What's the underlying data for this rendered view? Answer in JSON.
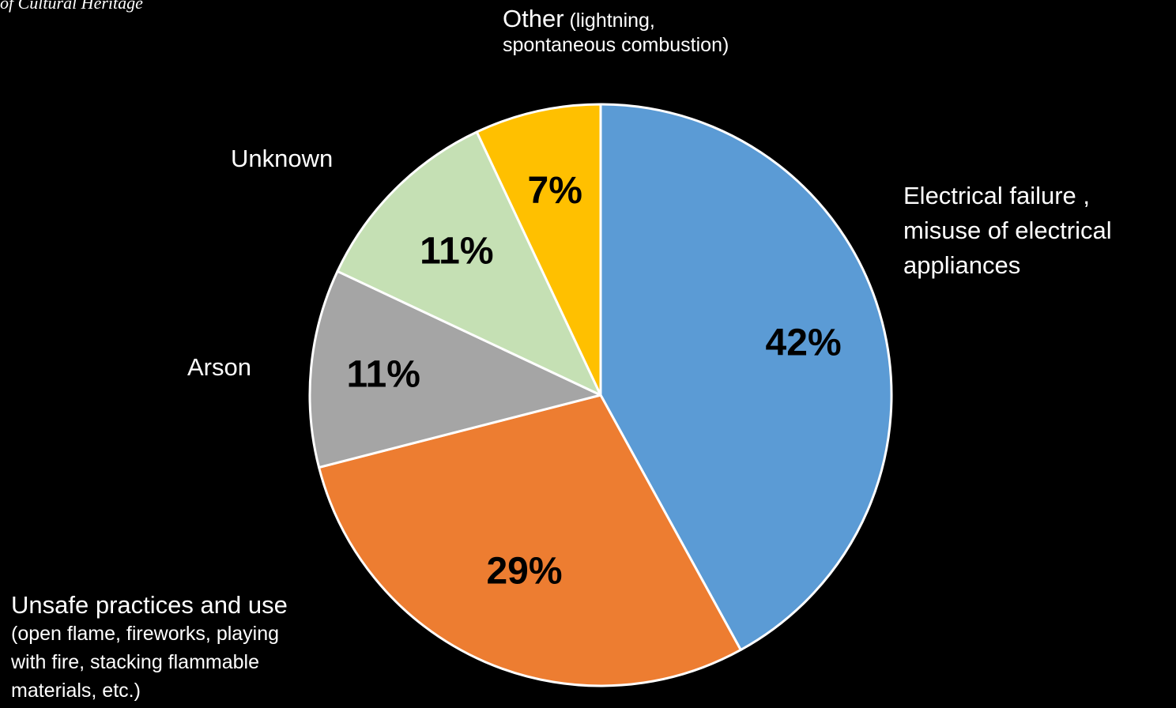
{
  "header_fragment": "of Cultural Heritage",
  "chart_data": {
    "type": "pie",
    "start_angle_deg": 0,
    "direction": "clockwise",
    "slice_border": "#ffffff",
    "background": "#000000",
    "slices": [
      {
        "label": "Electrical failure , misuse  of electrical appliances",
        "value": 42,
        "value_label": "42%",
        "color": "#5B9BD5"
      },
      {
        "label": "Unsafe practices and use (open flame, fireworks, playing with fire, stacking flammable materials, etc.)",
        "value": 29,
        "value_label": "29%",
        "color": "#ED7D31"
      },
      {
        "label": "Arson",
        "value": 11,
        "value_label": "11%",
        "color": "#A5A5A5"
      },
      {
        "label": "Unknown",
        "value": 11,
        "value_label": "11%",
        "color": "#C5E0B4"
      },
      {
        "label": "Other (lightning, spontaneous combustion)",
        "value": 7,
        "value_label": "7%",
        "color": "#FFC000"
      }
    ]
  },
  "labels": {
    "other_main": "Other",
    "other_sub_1": " (lightning,",
    "other_sub_2": "spontaneous combustion)",
    "unknown": "Unknown",
    "electrical_1": "Electrical failure ,",
    "electrical_2": "misuse  of electrical",
    "electrical_3": "appliances",
    "arson": "Arson",
    "unsafe_main": "Unsafe practices and use",
    "unsafe_sub_1": "(open flame, fireworks, playing",
    "unsafe_sub_2": "with fire, stacking flammable",
    "unsafe_sub_3": "materials, etc.)"
  }
}
